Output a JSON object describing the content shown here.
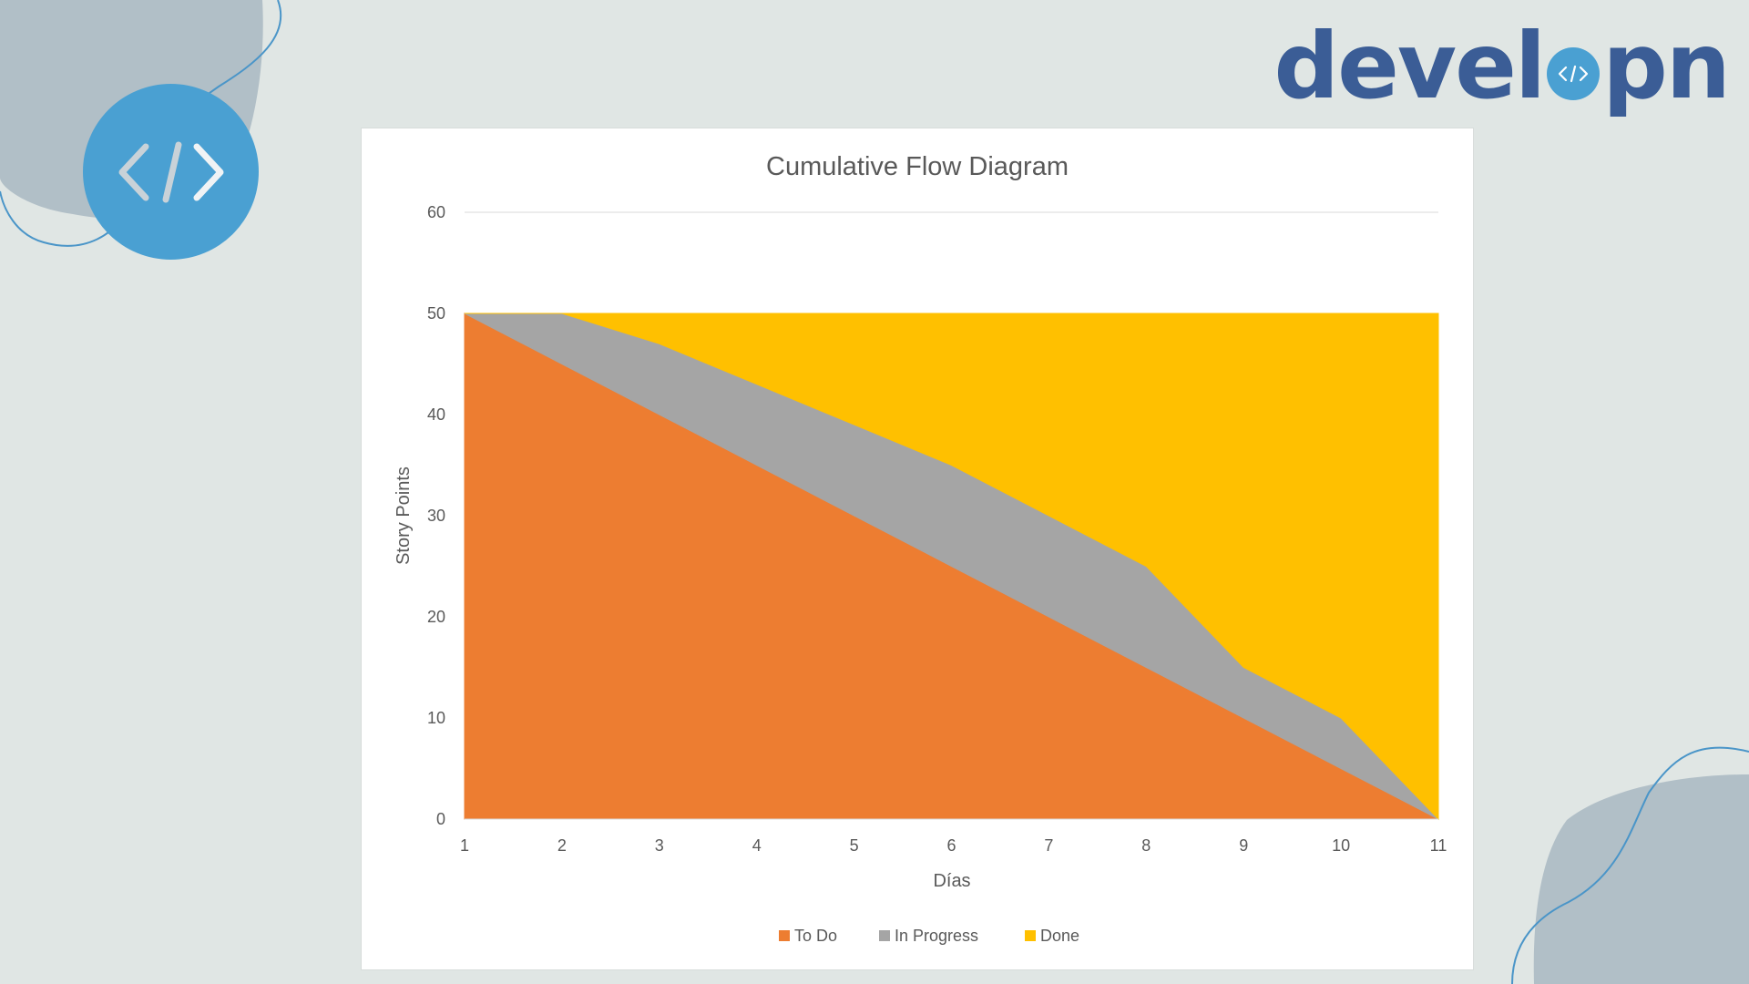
{
  "brand": {
    "name_before": "devel",
    "name_after": "pn",
    "mark_icon": "code-brackets-icon",
    "color": "#3b5d96",
    "accent": "#4aa0d2"
  },
  "badge": {
    "icon": "code-brackets-icon",
    "color": "#4aa0d2"
  },
  "chart_data": {
    "type": "area",
    "stacked": true,
    "title": "Cumulative Flow Diagram",
    "xlabel": "Días",
    "ylabel": "Story Points",
    "x": [
      1,
      2,
      3,
      4,
      5,
      6,
      7,
      8,
      9,
      10,
      11
    ],
    "ylim": [
      0,
      60
    ],
    "yticks": [
      0,
      10,
      20,
      30,
      40,
      50,
      60
    ],
    "grid": true,
    "legend_position": "bottom",
    "series": [
      {
        "name": "To Do",
        "color": "#ed7d31",
        "values": [
          50,
          45,
          40,
          35,
          30,
          25,
          20,
          15,
          10,
          5,
          0
        ]
      },
      {
        "name": "In Progress",
        "color": "#a5a5a5",
        "values": [
          0,
          5,
          7,
          8,
          9,
          10,
          10,
          10,
          5,
          5,
          0
        ]
      },
      {
        "name": "Done",
        "color": "#ffc000",
        "values": [
          0,
          0,
          3,
          7,
          11,
          15,
          20,
          25,
          35,
          40,
          50
        ]
      }
    ]
  }
}
